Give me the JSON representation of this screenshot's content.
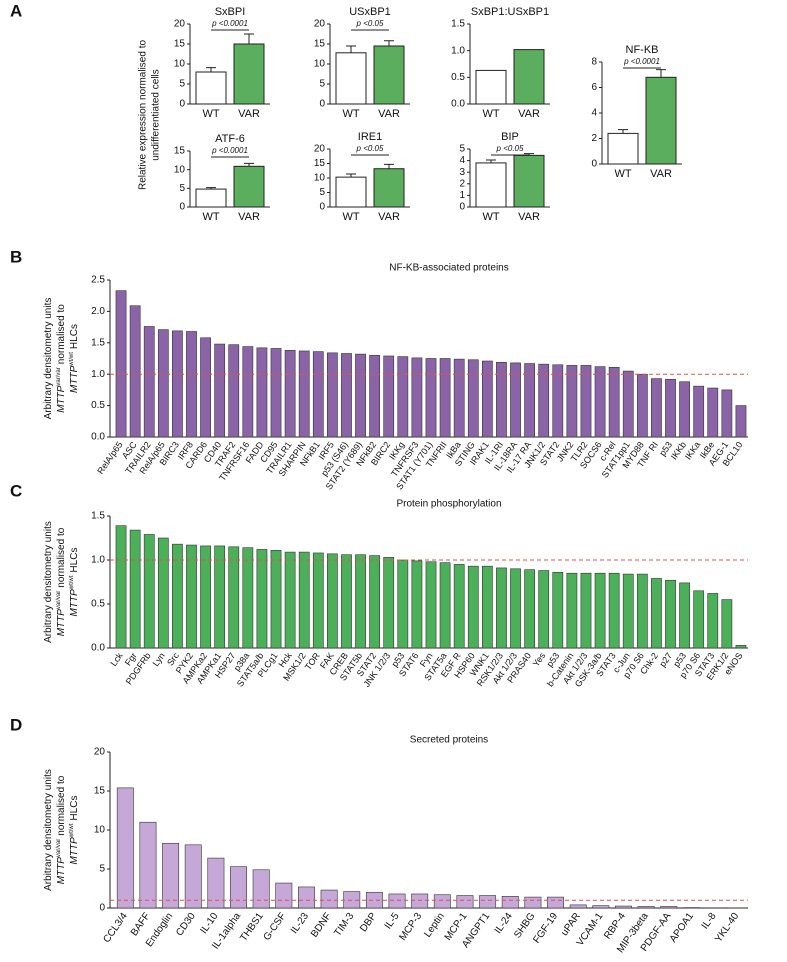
{
  "panels": [
    "A",
    "B",
    "C",
    "D"
  ],
  "shared_ylabel": [
    "Relative expression normalised to",
    "undifferentiated cells"
  ],
  "ylabel": [
    "Arbitrary densitometry units",
    "MTTP",
    "var/var",
    "normalised to",
    "MTTP",
    "wt/wt",
    "HLCs"
  ],
  "chart_data": [
    {
      "type": "bar",
      "title": "SxBPI",
      "categories": [
        "WT",
        "VAR"
      ],
      "values": [
        8,
        15
      ],
      "errors": [
        1.1,
        2.5
      ],
      "colors": [
        "#ffffff",
        "#5aae5e"
      ],
      "annotation": "p <0.0001",
      "ylim": [
        0,
        20
      ],
      "yticks": [
        0,
        5,
        10,
        15,
        20
      ]
    },
    {
      "type": "bar",
      "title": "USxBP1",
      "categories": [
        "WT",
        "VAR"
      ],
      "values": [
        12.8,
        14.5
      ],
      "errors": [
        1.7,
        1.3
      ],
      "colors": [
        "#ffffff",
        "#5aae5e"
      ],
      "annotation": "p <0.05",
      "ylim": [
        0,
        20
      ],
      "yticks": [
        0,
        5,
        10,
        15,
        20
      ]
    },
    {
      "type": "bar",
      "title": "SxBP1:USxBP1",
      "categories": [
        "WT",
        "VAR"
      ],
      "values": [
        0.63,
        1.02
      ],
      "colors": [
        "#ffffff",
        "#5aae5e"
      ],
      "ylim": [
        0,
        1.5
      ],
      "yticks": [
        {
          "value": 0,
          "label": "0.0"
        },
        {
          "value": 0.5,
          "label": "0.5"
        },
        {
          "value": 1,
          "label": "1.0"
        },
        {
          "value": 1.5,
          "label": "1.5"
        }
      ]
    },
    {
      "type": "bar",
      "title": "NF-KB",
      "categories": [
        "WT",
        "VAR"
      ],
      "values": [
        2.4,
        6.8
      ],
      "errors": [
        0.3,
        0.6
      ],
      "colors": [
        "#ffffff",
        "#5aae5e"
      ],
      "annotation": "p <0.0001",
      "ylim": [
        0,
        8
      ],
      "yticks": [
        0,
        2,
        4,
        6,
        8
      ]
    },
    {
      "type": "bar",
      "title": "ATF-6",
      "categories": [
        "WT",
        "VAR"
      ],
      "values": [
        4.8,
        10.9
      ],
      "errors": [
        0.4,
        0.8
      ],
      "colors": [
        "#ffffff",
        "#5aae5e"
      ],
      "annotation": "p <0.0001",
      "ylim": [
        0,
        15
      ],
      "yticks": [
        0,
        5,
        10,
        15
      ]
    },
    {
      "type": "bar",
      "title": "IRE1",
      "categories": [
        "WT",
        "VAR"
      ],
      "values": [
        10.3,
        13.2
      ],
      "errors": [
        1.1,
        1.5
      ],
      "colors": [
        "#ffffff",
        "#5aae5e"
      ],
      "annotation": "p <0.05",
      "ylim": [
        0,
        20
      ],
      "yticks": [
        0,
        5,
        10,
        15,
        20
      ]
    },
    {
      "type": "bar",
      "title": "BIP",
      "categories": [
        "WT",
        "VAR"
      ],
      "values": [
        3.8,
        4.45
      ],
      "errors": [
        0.25,
        0.15
      ],
      "colors": [
        "#ffffff",
        "#5aae5e"
      ],
      "annotation": "p <0.05",
      "ylim": [
        0,
        5
      ],
      "yticks": [
        0,
        1,
        2,
        3,
        4,
        5
      ]
    },
    {
      "type": "bar",
      "title": "NF-KB-associated proteins",
      "color": "#8b64a8",
      "refline": 1,
      "categories": [
        "RelA/p65",
        "ASC",
        "TRAILR2",
        "RelA/p65",
        "BIRC3",
        "IRF8",
        "CARD6",
        "CD40",
        "TRAF2",
        "TNFRSF16",
        "FADD",
        "CD95",
        "TRAILR1",
        "SHARPIN",
        "NFkB1",
        "IRF5",
        "p53 (S46)",
        "STAT2 (Y689)",
        "NFkB2",
        "BIRC2",
        "IKKg",
        "TNFRSF3",
        "STAT1 (Y701)",
        "TNFRII",
        "IkBa",
        "STING",
        "IRAK1",
        "IL-1RI",
        "IL-18RA",
        "IL-17 RA",
        "JNK1/2",
        "STAT2",
        "JNK2",
        "TLR2",
        "SOCS6",
        "c-Rel",
        "STAT1pp1",
        "MYD88",
        "TNF RI",
        "p53",
        "IKKb",
        "IKKa",
        "IkBe",
        "AEG-1",
        "BCL10"
      ],
      "values": [
        2.33,
        2.09,
        1.76,
        1.71,
        1.69,
        1.68,
        1.58,
        1.48,
        1.47,
        1.44,
        1.42,
        1.41,
        1.38,
        1.37,
        1.36,
        1.34,
        1.33,
        1.32,
        1.3,
        1.29,
        1.28,
        1.26,
        1.25,
        1.25,
        1.24,
        1.23,
        1.21,
        1.19,
        1.18,
        1.17,
        1.16,
        1.15,
        1.14,
        1.14,
        1.12,
        1.11,
        1.05,
        1.0,
        0.93,
        0.92,
        0.88,
        0.81,
        0.78,
        0.75,
        0.5
      ],
      "ylim": [
        0,
        2.5
      ],
      "yticks": [
        {
          "value": 0,
          "label": "0.0"
        },
        {
          "value": 0.5,
          "label": "0.5"
        },
        {
          "value": 1,
          "label": "1.0"
        },
        {
          "value": 1.5,
          "label": "1.5"
        },
        {
          "value": 2,
          "label": "2.0"
        },
        {
          "value": 2.5,
          "label": "2.5"
        }
      ]
    },
    {
      "type": "bar",
      "title": "Protein phosphorylation",
      "color": "#4caf5a",
      "refline": 1,
      "categories": [
        "Lck",
        "Fgr",
        "PDGFRb",
        "Lyn",
        "Src",
        "PYK2",
        "AMPKa2",
        "AMPKa1",
        "HSP27",
        "p38a",
        "STAT5a/b",
        "PLCg1",
        "Hck",
        "MSK1/2",
        "TOR",
        "FAK",
        "CREB",
        "STAT5b",
        "STAT2",
        "JNK 1/2/3",
        "p53",
        "STAT6",
        "Fyn",
        "STAT5a",
        "EGF R",
        "HSP60",
        "WNK1",
        "RSK1/2/3",
        "Akt 1/2/3",
        "PRAS40",
        "Yes",
        "p53",
        "b-Catenin",
        "Akt 1/2/3",
        "GSK-3a/b",
        "STAT3",
        "c-Jun",
        "p70 S6",
        "Chk-2",
        "p27",
        "p53",
        "p70 S6",
        "STAT3",
        "ERK1/2",
        "eNOS"
      ],
      "values": [
        1.39,
        1.34,
        1.29,
        1.25,
        1.18,
        1.17,
        1.16,
        1.16,
        1.15,
        1.14,
        1.12,
        1.11,
        1.09,
        1.09,
        1.08,
        1.07,
        1.06,
        1.06,
        1.05,
        1.03,
        1.0,
        0.99,
        0.98,
        0.97,
        0.95,
        0.93,
        0.93,
        0.91,
        0.9,
        0.89,
        0.88,
        0.86,
        0.85,
        0.85,
        0.85,
        0.85,
        0.84,
        0.84,
        0.79,
        0.77,
        0.74,
        0.65,
        0.62,
        0.55,
        0.03
      ],
      "ylim": [
        0,
        1.5
      ],
      "yticks": [
        {
          "value": 0,
          "label": "0.0"
        },
        {
          "value": 0.5,
          "label": "0.5"
        },
        {
          "value": 1,
          "label": "1.0"
        },
        {
          "value": 1.5,
          "label": "1.5"
        }
      ]
    },
    {
      "type": "bar",
      "title": "Secreted proteins",
      "color": "#c5a8d8",
      "refline": 1,
      "categories": [
        "CCL3/4",
        "BAFF",
        "Endoglin",
        "CD30",
        "IL-10",
        "IL-1alpha",
        "THBS1",
        "G-CSF",
        "IL-23",
        "BDNF",
        "TIM-3",
        "DBP",
        "IL-5",
        "MCP-3",
        "Leptin",
        "MCP-1",
        "ANGPT1",
        "IL-24",
        "SHBG",
        "FGF-19",
        "uPAR",
        "VCAM-1",
        "RBP-4",
        "MIP-3beta",
        "PDGF-AA",
        "APOA1",
        "IL-8",
        "YKL-40"
      ],
      "values": [
        15.4,
        11.0,
        8.3,
        8.1,
        6.4,
        5.3,
        4.9,
        3.2,
        2.7,
        2.3,
        2.1,
        2.0,
        1.8,
        1.8,
        1.7,
        1.6,
        1.6,
        1.5,
        1.4,
        1.4,
        0.4,
        0.3,
        0.25,
        0.2,
        0.2,
        0.05,
        0.03,
        0.02
      ],
      "ylim": [
        0,
        20
      ],
      "yticks": [
        0,
        5,
        10,
        15,
        20
      ]
    }
  ]
}
